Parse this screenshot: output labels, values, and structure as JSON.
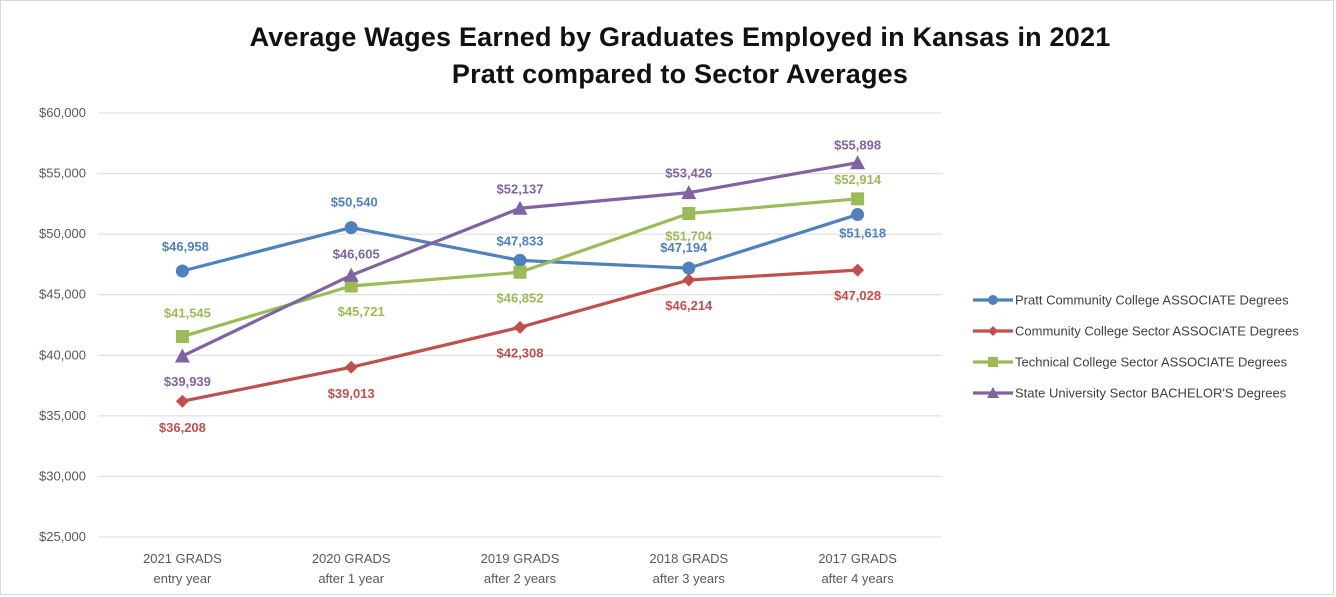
{
  "chart_data": {
    "type": "line",
    "title": "Average Wages Earned by Graduates Employed in Kansas in 2021",
    "subtitle": "Pratt compared to Sector Averages",
    "categories": [
      [
        "2021 GRADS",
        "entry year"
      ],
      [
        "2020 GRADS",
        "after 1 year"
      ],
      [
        "2019 GRADS",
        "after 2 years"
      ],
      [
        "2018 GRADS",
        "after 3 years"
      ],
      [
        "2017 GRADS",
        "after 4 years"
      ]
    ],
    "ylim": [
      25000,
      60000
    ],
    "yticks": [
      "$25,000",
      "$30,000",
      "$35,000",
      "$40,000",
      "$45,000",
      "$50,000",
      "$55,000",
      "$60,000"
    ],
    "grid": true,
    "legend_position": "right",
    "series": [
      {
        "name": "Pratt Community College ASSOCIATE Degrees",
        "color": "#4f81bd",
        "marker": "circle",
        "values": [
          46958,
          50540,
          47833,
          47194,
          51618
        ],
        "labels": [
          "$46,958",
          "$50,540",
          "$47,833",
          "$47,194",
          "$51,618"
        ]
      },
      {
        "name": "Community College Sector ASSOCIATE Degrees",
        "color": "#c0504d",
        "marker": "diamond",
        "values": [
          36208,
          39013,
          42308,
          46214,
          47028
        ],
        "labels": [
          "$36,208",
          "$39,013",
          "$42,308",
          "$46,214",
          "$47,028"
        ]
      },
      {
        "name": "Technical College Sector ASSOCIATE Degrees",
        "color": "#9bbb59",
        "marker": "square",
        "values": [
          41545,
          45721,
          46852,
          51704,
          52914
        ],
        "labels": [
          "$41,545",
          "$45,721",
          "$46,852",
          "$51,704",
          "$52,914"
        ]
      },
      {
        "name": "State University Sector BACHELOR'S Degrees",
        "color": "#8064a2",
        "marker": "triangle",
        "values": [
          39939,
          46605,
          52137,
          53426,
          55898
        ],
        "labels": [
          "$39,939",
          "$46,605",
          "$52,137",
          "$53,426",
          "$55,898"
        ]
      }
    ]
  }
}
